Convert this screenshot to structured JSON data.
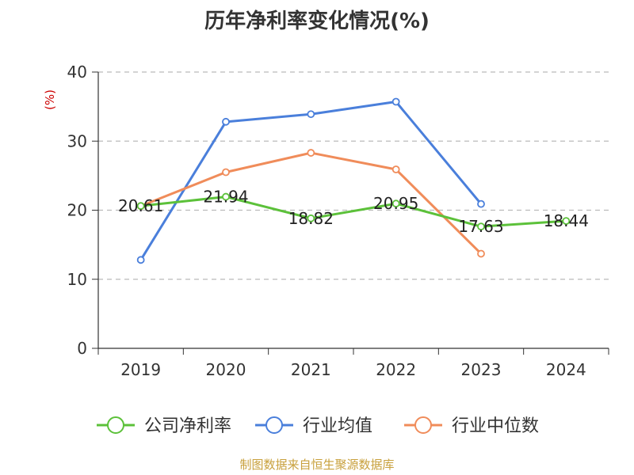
{
  "chart_data": {
    "type": "line",
    "title": "历年净利率变化情况(%)",
    "ylabel": "(%)",
    "xlabel": "",
    "categories": [
      "2019",
      "2020",
      "2021",
      "2022",
      "2023",
      "2024"
    ],
    "ylim": [
      0,
      40
    ],
    "yticks": [
      0,
      10,
      20,
      30,
      40
    ],
    "grid": true,
    "legend_position": "bottom",
    "series": [
      {
        "name": "公司净利率",
        "color": "#5cc13a",
        "values": [
          20.61,
          21.94,
          18.82,
          20.95,
          17.63,
          18.44
        ],
        "labels": [
          "20.61",
          "21.94",
          "18.82",
          "20.95",
          "17.63",
          "18.44"
        ]
      },
      {
        "name": "行业均值",
        "color": "#4a7fdb",
        "values": [
          12.8,
          32.8,
          33.9,
          35.7,
          20.9,
          null
        ]
      },
      {
        "name": "行业中位数",
        "color": "#f08c5a",
        "values": [
          20.6,
          25.5,
          28.3,
          25.9,
          13.7,
          null
        ]
      }
    ]
  },
  "footer": {
    "source": "制图数据来自恒生聚源数据库"
  }
}
